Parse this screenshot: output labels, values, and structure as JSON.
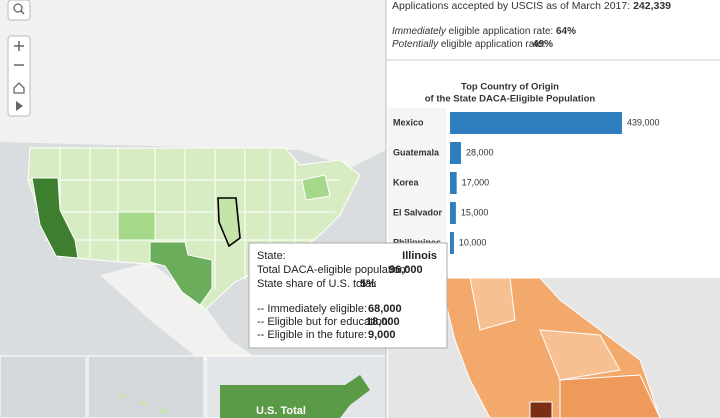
{
  "summary": {
    "applications_label": "Applications accepted by USCIS as of March 2017:",
    "applications_value": "242,339",
    "immediate_em": "Immediately",
    "immediate_label": " eligible application rate:",
    "immediate_value": "64%",
    "potential_em": "Potentially",
    "potential_label": " eligible application rate:",
    "potential_value": "49%"
  },
  "chart_data": {
    "type": "hbar",
    "title": [
      "Top Country of Origin",
      "of the State DACA-Eligible Population"
    ],
    "categories": [
      "Mexico",
      "Guatemala",
      "Korea",
      "El Salvador",
      "Philippines"
    ],
    "values": [
      439000,
      28000,
      17000,
      15000,
      10000
    ],
    "value_labels": [
      "439,000",
      "28,000",
      "17,000",
      "15,000",
      "10,000"
    ],
    "color": "#2f7ebf"
  },
  "tooltip": {
    "rows": [
      {
        "label": "State:",
        "value": "Illinois"
      },
      {
        "label": "Total DACA-eligible population:",
        "value": "96,000"
      },
      {
        "label": "State share of U.S. total:",
        "value": "5%"
      },
      {
        "label": "-- Immediately eligible:",
        "value": "68,000"
      },
      {
        "label": "-- Eligible but for education:",
        "value": "18,000"
      },
      {
        "label": "-- Eligible in the future:",
        "value": "9,000"
      }
    ]
  },
  "map": {
    "us_total_label": "U.S. Total"
  }
}
